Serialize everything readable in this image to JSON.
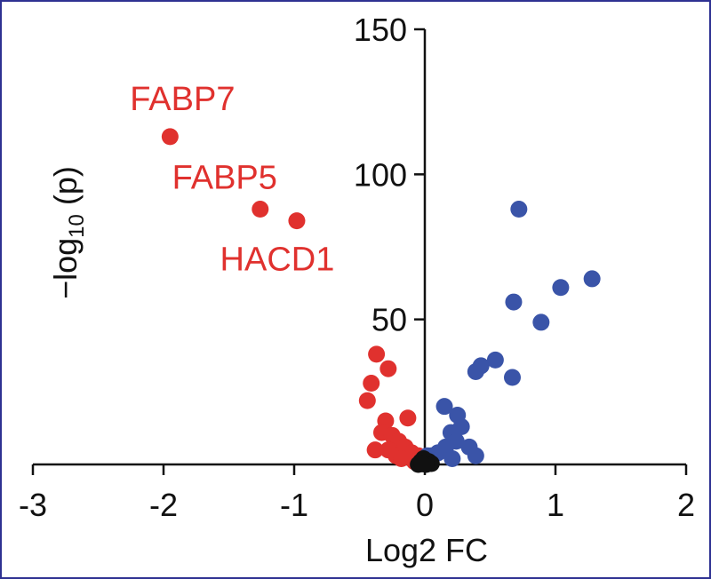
{
  "chart_data": {
    "type": "scatter",
    "title": "",
    "xlabel": "Log2 FC",
    "ylabel_prefix": "−log",
    "ylabel_sub": "10",
    "ylabel_suffix": " (p)",
    "xlim": [
      -3,
      2
    ],
    "ylim": [
      0,
      150
    ],
    "xticks": [
      -3,
      -2,
      -1,
      0,
      1,
      2
    ],
    "xtick_labels": [
      "-3",
      "-2",
      "-1",
      "0",
      "1",
      "2"
    ],
    "yticks": [
      50,
      100,
      150
    ],
    "ytick_labels": [
      "50",
      "100",
      "150"
    ],
    "grid": false,
    "legend": "none",
    "colors": {
      "down": "#e0312e",
      "up": "#3a54a8",
      "ns": "#111111",
      "axis": "#111111",
      "frame": "#2e3192"
    },
    "series": [
      {
        "color_key": "down",
        "points": [
          [
            -1.95,
            113
          ],
          [
            -1.26,
            88
          ],
          [
            -0.98,
            84
          ],
          [
            -0.37,
            38
          ],
          [
            -0.28,
            33
          ],
          [
            -0.41,
            28
          ],
          [
            -0.44,
            22
          ],
          [
            -0.3,
            15
          ],
          [
            -0.13,
            16
          ],
          [
            -0.33,
            11
          ],
          [
            -0.25,
            10
          ],
          [
            -0.2,
            8
          ],
          [
            -0.15,
            6
          ],
          [
            -0.28,
            5
          ],
          [
            -0.38,
            5
          ],
          [
            -0.1,
            4
          ],
          [
            -0.22,
            3
          ],
          [
            -0.05,
            3
          ],
          [
            -0.18,
            2
          ],
          [
            -0.08,
            1
          ]
        ]
      },
      {
        "color_key": "up",
        "points": [
          [
            0.72,
            88
          ],
          [
            1.28,
            64
          ],
          [
            1.04,
            61
          ],
          [
            0.68,
            56
          ],
          [
            0.89,
            49
          ],
          [
            0.54,
            36
          ],
          [
            0.43,
            34
          ],
          [
            0.39,
            32
          ],
          [
            0.67,
            30
          ],
          [
            0.15,
            20
          ],
          [
            0.25,
            17
          ],
          [
            0.28,
            13
          ],
          [
            0.2,
            11
          ],
          [
            0.24,
            8
          ],
          [
            0.16,
            6
          ],
          [
            0.34,
            6
          ],
          [
            0.39,
            3
          ],
          [
            0.1,
            4
          ],
          [
            0.05,
            3
          ],
          [
            0.21,
            2
          ],
          [
            0.02,
            3
          ]
        ]
      },
      {
        "color_key": "ns",
        "points": [
          [
            0.0,
            0.5
          ],
          [
            -0.03,
            1
          ],
          [
            0.03,
            1
          ],
          [
            -0.05,
            0
          ],
          [
            0.05,
            0.3
          ],
          [
            -0.01,
            2
          ],
          [
            0.01,
            0
          ],
          [
            -0.02,
            0.2
          ]
        ]
      }
    ],
    "annotations": [
      {
        "text": "FABP7",
        "x": -1.95,
        "y": 113
      },
      {
        "text": "FABP5",
        "x": -1.26,
        "y": 88
      },
      {
        "text": "HACD1",
        "x": -0.98,
        "y": 84
      }
    ]
  }
}
